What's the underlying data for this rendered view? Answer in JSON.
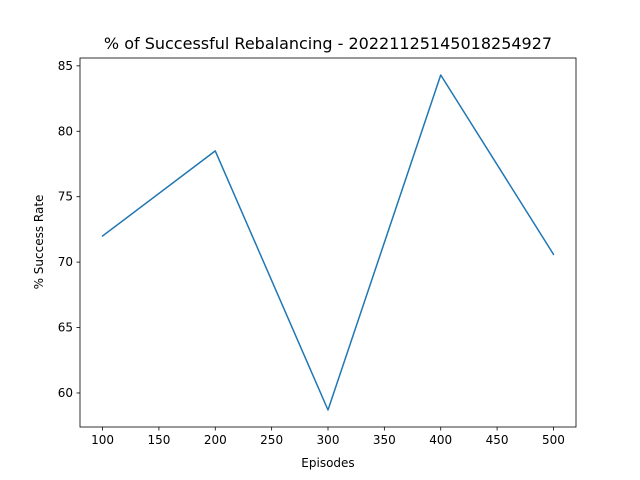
{
  "chart_data": {
    "type": "line",
    "title": "% of Successful Rebalancing - 20221125145018254927",
    "xlabel": "Episodes",
    "ylabel": "% Success Rate",
    "x": [
      100,
      200,
      300,
      400,
      500
    ],
    "series": [
      {
        "values": [
          72.0,
          78.5,
          58.7,
          84.3,
          70.6
        ],
        "color": "#1f77b4"
      }
    ],
    "xlim": [
      80,
      520
    ],
    "ylim": [
      57.4,
      85.6
    ],
    "xticks": [
      100,
      150,
      200,
      250,
      300,
      350,
      400,
      450,
      500
    ],
    "yticks": [
      60,
      65,
      70,
      75,
      80,
      85
    ],
    "grid": false,
    "legend": "none"
  }
}
